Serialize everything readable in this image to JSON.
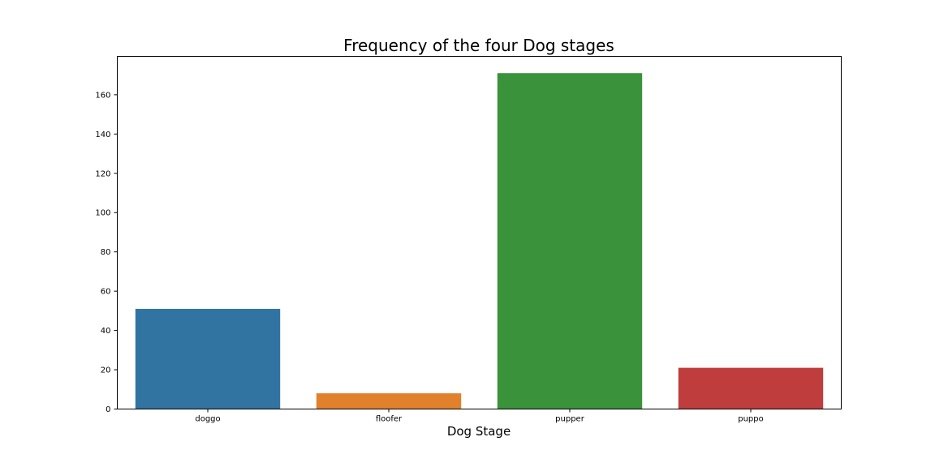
{
  "chart_data": {
    "type": "bar",
    "title": "Frequency of the four Dog stages",
    "xlabel": "Dog Stage",
    "ylabel": "",
    "categories": [
      "doggo",
      "floofer",
      "pupper",
      "puppo"
    ],
    "values": [
      51,
      8,
      171,
      21
    ],
    "colors": [
      "#3274a1",
      "#e1812c",
      "#3a923a",
      "#c03d3e"
    ],
    "ylim": [
      0,
      179.55
    ],
    "yticks": [
      0,
      20,
      40,
      60,
      80,
      100,
      120,
      140,
      160
    ],
    "grid": false,
    "legend": "none"
  }
}
